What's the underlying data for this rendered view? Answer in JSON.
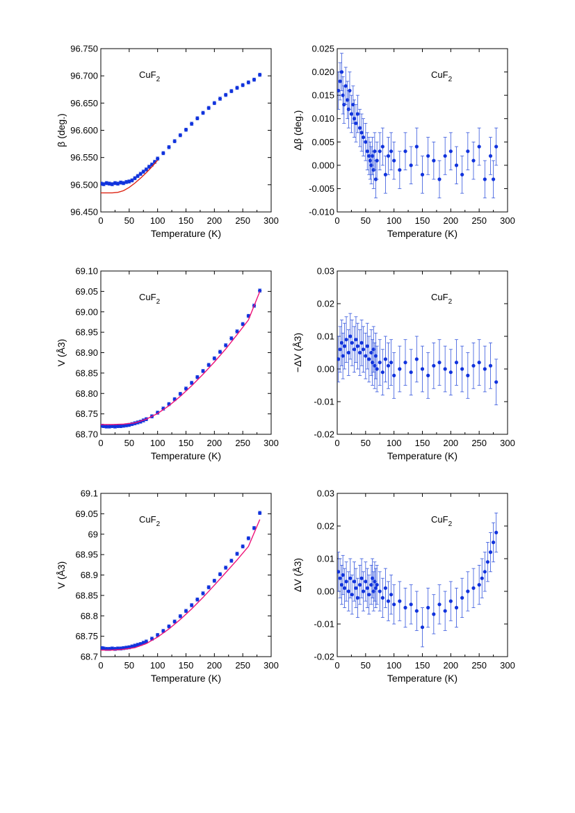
{
  "figure": {
    "compound_formula": "CuF",
    "compound_subscript": "2"
  },
  "chart_data": [
    {
      "id": "p1",
      "type": "scatter",
      "xlabel": "Temperature (K)",
      "ylabel": "β (deg.)",
      "xlim": [
        0,
        300
      ],
      "ylim": [
        96.45,
        96.75
      ],
      "x_ticks": [
        "0",
        "50",
        "100",
        "150",
        "200",
        "250",
        "300"
      ],
      "y_ticks": [
        "96.450",
        "96.500",
        "96.550",
        "96.600",
        "96.650",
        "96.700",
        "96.750"
      ],
      "annotation": "CuF2",
      "series": [
        {
          "kind": "points",
          "color": "#1133dd",
          "error": 0.003,
          "x": [
            1,
            5,
            10,
            15,
            20,
            25,
            30,
            35,
            40,
            45,
            50,
            55,
            60,
            65,
            70,
            75,
            80,
            85,
            90,
            95,
            100,
            110,
            120,
            130,
            140,
            150,
            160,
            170,
            180,
            190,
            200,
            210,
            220,
            230,
            240,
            250,
            260,
            270,
            280
          ],
          "y": [
            96.502,
            96.501,
            96.503,
            96.502,
            96.501,
            96.503,
            96.502,
            96.504,
            96.503,
            96.505,
            96.506,
            96.508,
            96.512,
            96.516,
            96.52,
            96.524,
            96.528,
            96.533,
            96.537,
            96.542,
            96.548,
            96.558,
            96.569,
            96.58,
            96.591,
            96.601,
            96.612,
            96.622,
            96.632,
            96.641,
            96.65,
            96.658,
            96.665,
            96.672,
            96.678,
            96.683,
            96.688,
            96.693,
            96.702
          ]
        },
        {
          "kind": "line",
          "color": "#dd2211",
          "x": [
            0,
            10,
            20,
            30,
            40,
            50,
            60,
            70,
            80,
            90,
            100
          ],
          "y": [
            96.485,
            96.485,
            96.485,
            96.486,
            96.489,
            96.495,
            96.503,
            96.512,
            96.522,
            96.533,
            96.545
          ]
        }
      ]
    },
    {
      "id": "p2",
      "type": "scatter",
      "xlabel": "Temperature (K)",
      "ylabel": "Δβ (deg.)",
      "xlim": [
        0,
        300
      ],
      "ylim": [
        -0.01,
        0.025
      ],
      "x_ticks": [
        "0",
        "50",
        "100",
        "150",
        "200",
        "250",
        "300"
      ],
      "y_ticks": [
        "-0.010",
        "-0.005",
        "0.000",
        "0.005",
        "0.010",
        "0.015",
        "0.020",
        "0.025"
      ],
      "annotation": "CuF2",
      "series": [
        {
          "kind": "points",
          "color": "#1133dd",
          "error": 0.004,
          "x": [
            2,
            5,
            8,
            10,
            12,
            15,
            18,
            20,
            22,
            25,
            28,
            30,
            33,
            36,
            40,
            43,
            46,
            50,
            53,
            56,
            58,
            60,
            62,
            64,
            66,
            68,
            70,
            75,
            80,
            85,
            90,
            95,
            100,
            110,
            120,
            130,
            140,
            150,
            160,
            170,
            180,
            190,
            200,
            210,
            220,
            230,
            240,
            250,
            260,
            270,
            275,
            280
          ],
          "y": [
            0.016,
            0.018,
            0.02,
            0.015,
            0.013,
            0.017,
            0.014,
            0.012,
            0.016,
            0.011,
            0.013,
            0.01,
            0.009,
            0.011,
            0.008,
            0.007,
            0.006,
            0.005,
            0.003,
            0.002,
            0.001,
            0.0,
            0.002,
            -0.001,
            0.003,
            -0.003,
            0.001,
            0.003,
            0.004,
            -0.002,
            0.002,
            0.003,
            0.001,
            -0.001,
            0.003,
            0.0,
            0.004,
            -0.002,
            0.002,
            0.001,
            -0.003,
            0.002,
            0.003,
            0.0,
            -0.002,
            0.003,
            0.001,
            0.004,
            -0.003,
            0.002,
            -0.003,
            0.004
          ]
        }
      ]
    },
    {
      "id": "p3",
      "type": "scatter",
      "xlabel": "Temperature (K)",
      "ylabel": "V (Å3)",
      "xlim": [
        0,
        300
      ],
      "ylim": [
        68.7,
        69.1
      ],
      "x_ticks": [
        "0",
        "50",
        "100",
        "150",
        "200",
        "250",
        "300"
      ],
      "y_ticks": [
        "68.70",
        "68.75",
        "68.80",
        "68.85",
        "68.90",
        "68.95",
        "69.00",
        "69.05",
        "69.10"
      ],
      "annotation": "CuF2",
      "series": [
        {
          "kind": "points",
          "color": "#1133dd",
          "error": 0.004,
          "x": [
            2,
            5,
            10,
            15,
            20,
            25,
            30,
            35,
            40,
            45,
            50,
            55,
            60,
            65,
            70,
            75,
            80,
            90,
            100,
            110,
            120,
            130,
            140,
            150,
            160,
            170,
            180,
            190,
            200,
            210,
            220,
            230,
            240,
            250,
            260,
            270,
            280
          ],
          "y": [
            68.721,
            68.72,
            68.719,
            68.719,
            68.72,
            68.719,
            68.72,
            68.72,
            68.721,
            68.722,
            68.723,
            68.725,
            68.727,
            68.729,
            68.731,
            68.734,
            68.737,
            68.744,
            68.753,
            68.763,
            68.774,
            68.786,
            68.799,
            68.812,
            68.826,
            68.84,
            68.855,
            68.87,
            68.886,
            68.902,
            68.918,
            68.935,
            68.952,
            68.97,
            68.99,
            69.015,
            69.052
          ]
        },
        {
          "kind": "line",
          "color": "#ee1177",
          "x": [
            0,
            20,
            40,
            60,
            80,
            100,
            120,
            140,
            160,
            180,
            200,
            220,
            240,
            260,
            280
          ],
          "y": [
            68.724,
            68.724,
            68.725,
            68.728,
            68.737,
            68.751,
            68.77,
            68.793,
            68.819,
            68.847,
            68.877,
            68.909,
            68.944,
            68.98,
            69.05
          ]
        }
      ]
    },
    {
      "id": "p4",
      "type": "scatter",
      "xlabel": "Temperature (K)",
      "ylabel": "−ΔV (Å3)",
      "xlim": [
        0,
        300
      ],
      "ylim": [
        -0.02,
        0.03
      ],
      "x_ticks": [
        "0",
        "50",
        "100",
        "150",
        "200",
        "250",
        "300"
      ],
      "y_ticks": [
        "-0.02",
        "-0.01",
        "0.00",
        "0.01",
        "0.02",
        "0.03"
      ],
      "annotation": "CuF2",
      "series": [
        {
          "kind": "points",
          "color": "#1133dd",
          "error": 0.007,
          "x": [
            2,
            5,
            8,
            10,
            13,
            16,
            20,
            23,
            26,
            30,
            33,
            36,
            40,
            43,
            46,
            50,
            53,
            56,
            60,
            62,
            64,
            66,
            68,
            70,
            75,
            80,
            85,
            90,
            95,
            100,
            110,
            120,
            130,
            140,
            150,
            160,
            170,
            180,
            190,
            200,
            210,
            220,
            230,
            240,
            250,
            260,
            270,
            280
          ],
          "y": [
            0.003,
            0.006,
            0.008,
            0.004,
            0.007,
            0.009,
            0.005,
            0.01,
            0.008,
            0.006,
            0.009,
            0.007,
            0.005,
            0.008,
            0.006,
            0.004,
            0.007,
            0.003,
            0.005,
            0.002,
            0.006,
            0.001,
            0.004,
            0.0,
            0.002,
            -0.001,
            0.003,
            0.001,
            0.002,
            -0.002,
            0.0,
            0.002,
            -0.001,
            0.003,
            0.0,
            -0.002,
            0.001,
            0.002,
            0.0,
            -0.001,
            0.002,
            0.0,
            -0.002,
            0.001,
            0.002,
            0.0,
            0.001,
            -0.004
          ]
        }
      ]
    },
    {
      "id": "p5",
      "type": "scatter",
      "xlabel": "Temperature (K)",
      "ylabel": "V (Å3)",
      "xlim": [
        0,
        300
      ],
      "ylim": [
        68.7,
        69.1
      ],
      "x_ticks": [
        "0",
        "50",
        "100",
        "150",
        "200",
        "250",
        "300"
      ],
      "y_ticks": [
        "68.7",
        "68.75",
        "68.8",
        "68.85",
        "68.9",
        "68.95",
        "69",
        "69.05",
        "69.1"
      ],
      "annotation": "CuF2",
      "series": [
        {
          "kind": "points",
          "color": "#1133dd",
          "error": 0.004,
          "x": [
            2,
            5,
            10,
            15,
            20,
            25,
            30,
            35,
            40,
            45,
            50,
            55,
            60,
            65,
            70,
            75,
            80,
            90,
            100,
            110,
            120,
            130,
            140,
            150,
            160,
            170,
            180,
            190,
            200,
            210,
            220,
            230,
            240,
            250,
            260,
            270,
            280
          ],
          "y": [
            68.721,
            68.72,
            68.719,
            68.719,
            68.72,
            68.719,
            68.72,
            68.72,
            68.721,
            68.722,
            68.723,
            68.725,
            68.727,
            68.729,
            68.731,
            68.734,
            68.737,
            68.744,
            68.753,
            68.763,
            68.774,
            68.786,
            68.799,
            68.812,
            68.826,
            68.84,
            68.855,
            68.87,
            68.886,
            68.902,
            68.918,
            68.935,
            68.952,
            68.97,
            68.99,
            69.015,
            69.052
          ]
        },
        {
          "kind": "line",
          "color": "#ee1177",
          "x": [
            0,
            20,
            40,
            60,
            80,
            100,
            120,
            140,
            160,
            180,
            200,
            220,
            240,
            260,
            280
          ],
          "y": [
            68.716,
            68.716,
            68.718,
            68.722,
            68.732,
            68.748,
            68.768,
            68.791,
            68.817,
            68.845,
            68.875,
            68.906,
            68.937,
            68.97,
            69.036
          ]
        }
      ]
    },
    {
      "id": "p6",
      "type": "scatter",
      "xlabel": "Temperature (K)",
      "ylabel": "ΔV (Å3)",
      "xlim": [
        0,
        300
      ],
      "ylim": [
        -0.02,
        0.03
      ],
      "x_ticks": [
        "0",
        "50",
        "100",
        "150",
        "200",
        "250",
        "300"
      ],
      "y_ticks": [
        "-0.02",
        "-0.01",
        "0.00",
        "0.01",
        "0.02",
        "0.03"
      ],
      "annotation": "CuF2",
      "series": [
        {
          "kind": "points",
          "color": "#1133dd",
          "error": 0.006,
          "x": [
            2,
            5,
            8,
            10,
            13,
            16,
            20,
            23,
            26,
            30,
            33,
            36,
            40,
            43,
            46,
            50,
            53,
            56,
            60,
            62,
            64,
            66,
            68,
            70,
            75,
            80,
            85,
            90,
            95,
            100,
            110,
            120,
            130,
            140,
            150,
            160,
            170,
            180,
            190,
            200,
            210,
            220,
            230,
            240,
            250,
            255,
            260,
            265,
            270,
            275,
            280
          ],
          "y": [
            0.006,
            0.004,
            0.002,
            0.005,
            0.001,
            0.003,
            0.0,
            0.004,
            -0.001,
            0.003,
            0.001,
            -0.002,
            0.002,
            0.004,
            0.0,
            0.003,
            0.001,
            -0.001,
            0.002,
            0.004,
            0.0,
            0.003,
            0.001,
            0.002,
            0.0,
            -0.002,
            0.001,
            -0.003,
            -0.001,
            -0.004,
            -0.003,
            -0.005,
            -0.004,
            -0.006,
            -0.011,
            -0.005,
            -0.007,
            -0.004,
            -0.006,
            -0.003,
            -0.005,
            -0.002,
            0.0,
            0.001,
            0.002,
            0.004,
            0.006,
            0.009,
            0.012,
            0.015,
            0.018
          ]
        }
      ]
    }
  ]
}
